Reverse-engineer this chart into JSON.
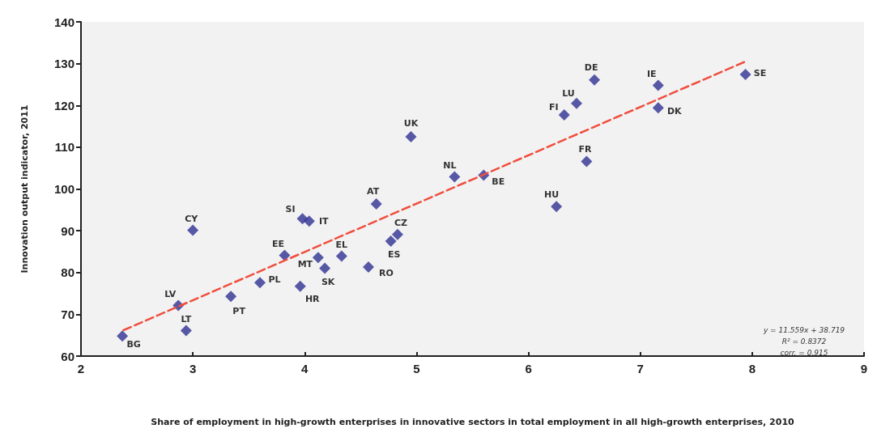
{
  "chart_data": {
    "type": "scatter",
    "xlabel": "Share of employment in high-growth enterprises in innovative sectors in total employment in all high-growth enterprises, 2010",
    "ylabel": "Innovation output indicator, 2011",
    "x": [
      2.37,
      2.94,
      2.87,
      3.0,
      3.34,
      3.6,
      3.82,
      3.98,
      4.04,
      3.96,
      4.12,
      4.18,
      4.33,
      4.57,
      4.64,
      4.77,
      4.83,
      4.95,
      5.34,
      5.6,
      6.25,
      6.32,
      6.43,
      6.52,
      6.59,
      7.16,
      7.16,
      7.94
    ],
    "series": [
      {
        "color": "#2e3192",
        "marker": "diamond",
        "values": [
          64.8,
          66.1,
          72.1,
          90.1,
          74.3,
          77.6,
          84.1,
          92.9,
          92.3,
          76.7,
          83.6,
          81.0,
          83.9,
          81.3,
          96.4,
          87.5,
          89.1,
          112.5,
          102.9,
          103.3,
          95.8,
          117.7,
          120.5,
          106.6,
          126.1,
          124.8,
          119.4,
          127.4
        ]
      },
      {
        "type": "line",
        "color": "#f04e3e",
        "line_style": "dashed",
        "marker": "none",
        "x": [
          2.38,
          7.94
        ],
        "values": [
          66.2,
          130.5
        ]
      }
    ],
    "annotations": [
      {
        "text": "BG",
        "x": 2.37,
        "y": 64.8
      },
      {
        "text": "LT",
        "x": 2.94,
        "y": 66.1
      },
      {
        "text": "LV",
        "x": 2.87,
        "y": 72.1
      },
      {
        "text": "CY",
        "x": 3.0,
        "y": 90.1
      },
      {
        "text": "PT",
        "x": 3.34,
        "y": 74.3
      },
      {
        "text": "PL",
        "x": 3.6,
        "y": 77.6
      },
      {
        "text": "EE",
        "x": 3.82,
        "y": 84.1
      },
      {
        "text": "SI",
        "x": 3.98,
        "y": 92.9
      },
      {
        "text": "IT",
        "x": 4.04,
        "y": 92.3
      },
      {
        "text": "HR",
        "x": 3.96,
        "y": 76.7
      },
      {
        "text": "MT",
        "x": 4.12,
        "y": 83.6
      },
      {
        "text": "SK",
        "x": 4.18,
        "y": 81.0
      },
      {
        "text": "EL",
        "x": 4.33,
        "y": 83.9
      },
      {
        "text": "RO",
        "x": 4.57,
        "y": 81.3
      },
      {
        "text": "AT",
        "x": 4.64,
        "y": 96.4
      },
      {
        "text": "ES",
        "x": 4.77,
        "y": 87.5
      },
      {
        "text": "CZ",
        "x": 4.83,
        "y": 89.1
      },
      {
        "text": "UK",
        "x": 4.95,
        "y": 112.5
      },
      {
        "text": "NL",
        "x": 5.34,
        "y": 102.9
      },
      {
        "text": "BE",
        "x": 5.6,
        "y": 103.3
      },
      {
        "text": "HU",
        "x": 6.25,
        "y": 95.8
      },
      {
        "text": "FI",
        "x": 6.32,
        "y": 117.7
      },
      {
        "text": "LU",
        "x": 6.43,
        "y": 120.5
      },
      {
        "text": "FR",
        "x": 6.52,
        "y": 106.6
      },
      {
        "text": "DE",
        "x": 6.59,
        "y": 126.1
      },
      {
        "text": "IE",
        "x": 7.16,
        "y": 124.8
      },
      {
        "text": "DK",
        "x": 7.16,
        "y": 119.4
      },
      {
        "text": "SE",
        "x": 7.94,
        "y": 127.4
      },
      "y = 11.559x + 38.719",
      "R² = 0.8372",
      "corr. = 0.915"
    ],
    "xlim": [
      2,
      9
    ],
    "xticks": [
      2,
      3,
      4,
      5,
      6,
      7,
      8,
      9
    ],
    "ylim": [
      60,
      140
    ],
    "yticks": [
      60,
      70,
      80,
      90,
      100,
      110,
      120,
      130,
      140
    ],
    "grid": false
  }
}
